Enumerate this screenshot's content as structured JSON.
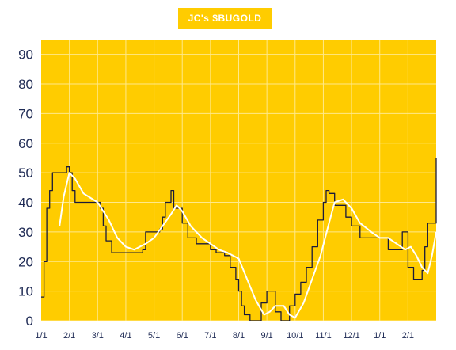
{
  "chart_data": {
    "type": "line",
    "title": "JC's $BUGOLD",
    "xlabel": "",
    "ylabel": "",
    "ylim": [
      0,
      95
    ],
    "yticks": [
      0,
      10,
      20,
      30,
      40,
      50,
      60,
      70,
      80,
      90
    ],
    "xlim": [
      0,
      14
    ],
    "x_tick_positions": [
      0,
      1,
      2,
      3,
      4,
      5,
      6,
      7,
      8,
      9,
      10,
      11,
      12,
      13
    ],
    "x_tick_labels": [
      "1/1",
      "2/1",
      "3/1",
      "4/1",
      "5/1",
      "6/1",
      "7/1",
      "8/1",
      "9/1",
      "10/1",
      "11/1",
      "12/1",
      "1/1",
      "2/1"
    ],
    "grid": true,
    "colors": {
      "background": "#FFCC00",
      "grid": "#FFE98A",
      "series_raw": "#1a1a3a",
      "series_smooth": "#ffffff",
      "tick_text": "#1f2b55"
    },
    "series": [
      {
        "key": "raw",
        "x": [
          0,
          0.1,
          0.2,
          0.3,
          0.4,
          0.5,
          0.9,
          1.0,
          1.1,
          1.2,
          1.5,
          1.9,
          2.0,
          2.1,
          2.2,
          2.3,
          2.5,
          2.8,
          3.0,
          3.4,
          3.6,
          3.7,
          4.1,
          4.2,
          4.3,
          4.4,
          4.5,
          4.6,
          4.7,
          5.0,
          5.2,
          5.5,
          5.8,
          6.0,
          6.2,
          6.5,
          6.7,
          6.9,
          7.0,
          7.1,
          7.2,
          7.4,
          7.6,
          7.8,
          8.0,
          8.3,
          8.5,
          8.6,
          8.8,
          9.0,
          9.2,
          9.4,
          9.6,
          9.8,
          10.0,
          10.1,
          10.2,
          10.4,
          10.5,
          10.8,
          11.0,
          11.3,
          11.6,
          11.8,
          12.0,
          12.3,
          12.4,
          12.6,
          12.8,
          13.0,
          13.2,
          13.4,
          13.5,
          13.6,
          13.7,
          14.0
        ],
        "y": [
          8,
          20,
          38,
          44,
          50,
          50,
          52,
          50,
          44,
          40,
          40,
          40,
          40,
          38,
          32,
          27,
          23,
          23,
          23,
          23,
          24,
          30,
          30,
          31,
          35,
          40,
          40,
          44,
          38,
          33,
          28,
          26,
          26,
          24,
          23,
          22,
          18,
          14,
          10,
          5,
          2,
          0,
          0,
          6,
          10,
          3,
          0,
          0,
          5,
          9,
          13,
          18,
          25,
          34,
          40,
          44,
          43,
          39,
          39,
          35,
          32,
          28,
          28,
          28,
          28,
          24,
          24,
          24,
          30,
          18,
          14,
          14,
          17,
          25,
          33,
          55
        ]
      },
      {
        "key": "smooth",
        "x": [
          0.65,
          0.8,
          1.0,
          1.2,
          1.5,
          2.0,
          2.4,
          2.7,
          3.0,
          3.3,
          3.7,
          4.0,
          4.3,
          4.6,
          4.8,
          5.0,
          5.3,
          5.7,
          6.0,
          6.3,
          6.6,
          7.0,
          7.3,
          7.6,
          7.9,
          8.1,
          8.3,
          8.6,
          8.8,
          9.0,
          9.3,
          9.6,
          9.9,
          10.2,
          10.4,
          10.7,
          11.0,
          11.3,
          11.7,
          12.0,
          12.3,
          12.6,
          12.9,
          13.1,
          13.3,
          13.5,
          13.7,
          13.85,
          14.0
        ],
        "y": [
          32,
          42,
          50,
          48,
          43,
          40,
          34,
          28,
          25,
          24,
          26,
          28,
          32,
          36,
          39,
          37,
          32,
          28,
          26,
          24,
          23,
          21,
          14,
          7,
          2,
          3,
          5,
          5,
          2,
          1,
          6,
          14,
          22,
          33,
          40,
          41,
          38,
          33,
          30,
          28,
          28,
          26,
          24,
          25,
          22,
          18,
          16,
          22,
          30
        ]
      }
    ]
  }
}
